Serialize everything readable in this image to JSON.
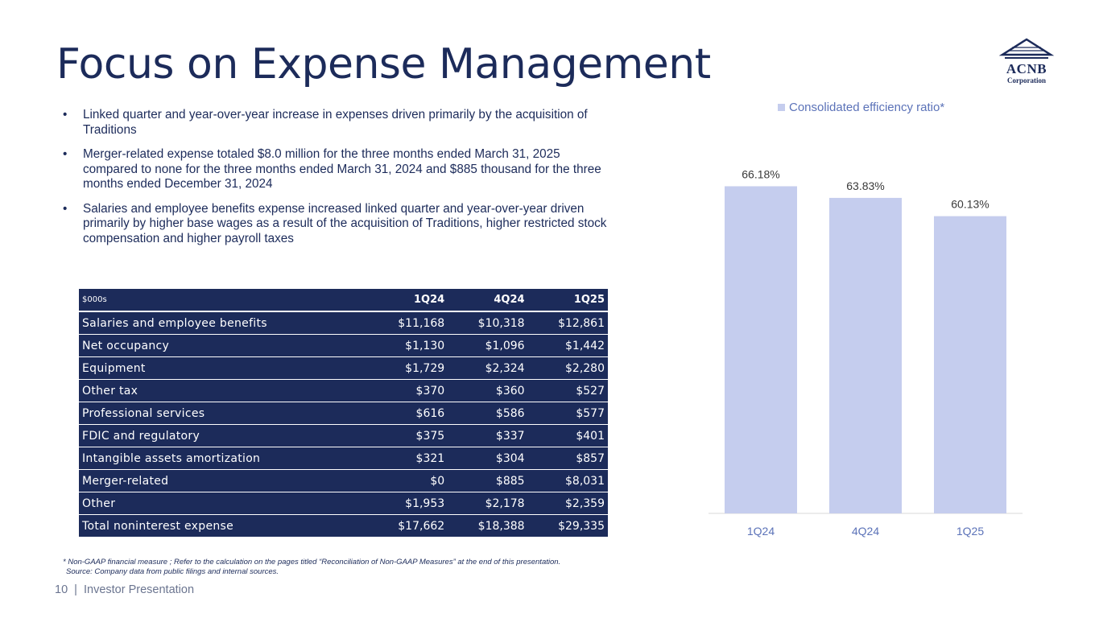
{
  "header": {
    "title": "Focus on Expense Management"
  },
  "logo": {
    "name": "ACNB",
    "sub": "Corporation"
  },
  "bullets": [
    "Linked quarter and year-over-year increase in expenses driven primarily by the acquisition of Traditions",
    "Merger-related expense totaled $8.0 million for the three months ended March 31, 2025 compared to none for the three months ended March 31, 2024 and $885 thousand for the three months ended December 31, 2024",
    "Salaries and employee benefits expense increased  linked quarter and year-over-year driven primarily by higher base wages as a result of the acquisition of Traditions, higher restricted stock compensation and higher payroll taxes"
  ],
  "bullet_glyph": "•",
  "table": {
    "headers": [
      "$000s",
      "1Q24",
      "4Q24",
      "1Q25"
    ],
    "rows": [
      [
        "Salaries and employee benefits",
        "$11,168",
        "$10,318",
        "$12,861"
      ],
      [
        "Net occupancy",
        "$1,130",
        "$1,096",
        "$1,442"
      ],
      [
        "Equipment",
        "$1,729",
        "$2,324",
        "$2,280"
      ],
      [
        "Other tax",
        "$370",
        "$360",
        "$527"
      ],
      [
        "Professional services",
        "$616",
        "$586",
        "$577"
      ],
      [
        "FDIC and regulatory",
        "$375",
        "$337",
        "$401"
      ],
      [
        "Intangible assets amortization",
        "$321",
        "$304",
        "$857"
      ],
      [
        "Merger-related",
        "$0",
        "$885",
        "$8,031"
      ],
      [
        "Other",
        "$1,953",
        "$2,178",
        "$2,359"
      ],
      [
        "Total noninterest expense",
        "$17,662",
        "$18,388",
        "$29,335"
      ]
    ]
  },
  "chart_data": {
    "type": "bar",
    "categories": [
      "1Q24",
      "4Q24",
      "1Q25"
    ],
    "series": [
      {
        "name": "Consolidated efficiency ratio*",
        "values": [
          66.18,
          63.83,
          60.13
        ]
      }
    ],
    "data_labels": [
      "66.18%",
      "63.83%",
      "60.13%"
    ],
    "ylim": [
      0,
      70
    ],
    "legend_position": "top",
    "grid": false,
    "colors": {
      "bar": "#c5cdee",
      "label": "#3a3a3a",
      "axis_text": "#5b72b8"
    }
  },
  "footnote": {
    "line1": "* Non-GAAP financial measure ; Refer to the calculation on the pages titled “Reconciliation of Non-GAAP Measures” at the end of this presentation.",
    "line2": "Source: Company data from public filings and internal sources."
  },
  "footer": {
    "page_number": "10",
    "separator": "|",
    "label": "Investor Presentation"
  }
}
